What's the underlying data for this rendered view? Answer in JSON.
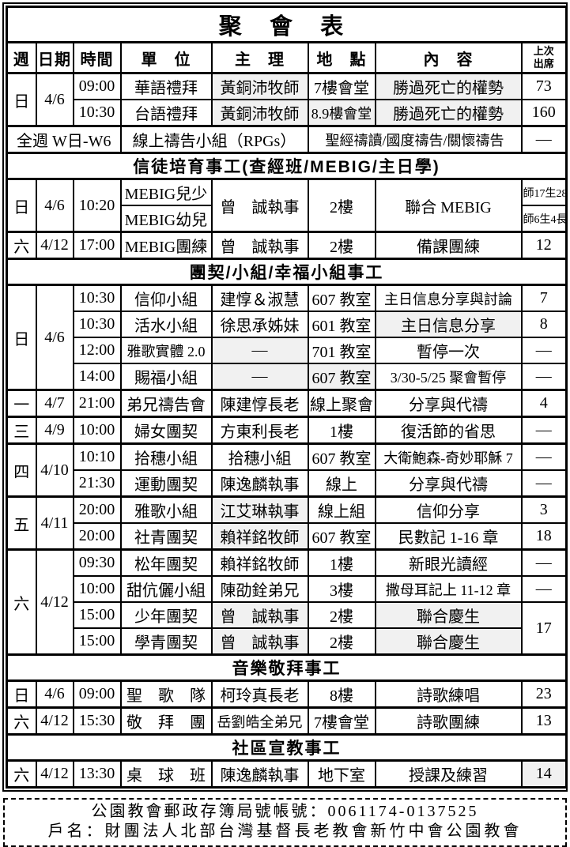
{
  "table": {
    "title": "聚 會 表",
    "columns": [
      {
        "label": "週"
      },
      {
        "label": "日期"
      },
      {
        "label": "時間"
      },
      {
        "label": "單　位"
      },
      {
        "label": "主　理"
      },
      {
        "label": "地　點"
      },
      {
        "label": "內　容"
      },
      {
        "label": "上次\n出席",
        "small": true
      }
    ],
    "blocks": [
      {
        "type": "rows",
        "rows": [
          {
            "cells": [
              {
                "t": "日",
                "rs": 2
              },
              {
                "t": "4/6",
                "rs": 2
              },
              {
                "t": "09:00"
              },
              {
                "t": "華語禮拜"
              },
              {
                "t": "黃銅沛牧師",
                "sh": true
              },
              {
                "t": "7樓會堂"
              },
              {
                "t": "勝過死亡的權勢",
                "sh": true
              },
              {
                "t": "73"
              }
            ]
          },
          {
            "cells": [
              {
                "t": "10:30"
              },
              {
                "t": "台語禮拜"
              },
              {
                "t": "黃銅沛牧師",
                "sh": true
              },
              {
                "t": "8.9樓會堂",
                "f": 18,
                "sh": true
              },
              {
                "t": "勝過死亡的權勢",
                "sh": true
              },
              {
                "t": "160"
              }
            ]
          },
          {
            "g": true,
            "cells": [
              {
                "t": "全週 W日-W6",
                "cs": 3
              },
              {
                "t": "線上禱告小組（RPGs）",
                "cs": 2
              },
              {
                "t": "聖經禱讀/國度禱告/關懷禱告",
                "cs": 2,
                "f": 18
              },
              {
                "t": "—"
              }
            ]
          }
        ]
      },
      {
        "type": "section",
        "label": "信徒培育事工(查經班/MEBIG/主日學)"
      },
      {
        "type": "rows",
        "rows": [
          {
            "cells": [
              {
                "t": "日",
                "rs": 2
              },
              {
                "t": "4/6",
                "rs": 2
              },
              {
                "t": "10:20",
                "rs": 2
              },
              {
                "t": "MEBIG兒少"
              },
              {
                "t": "曾　誠執事",
                "rs": 2
              },
              {
                "t": "2樓",
                "rs": 2
              },
              {
                "t": "聯合 MEBIG",
                "rs": 2
              },
              {
                "t": "師17生28長2",
                "sm": true
              }
            ]
          },
          {
            "cells": [
              {
                "t": "MEBIG幼兒"
              },
              {
                "t": "師6生4長2",
                "sm": true
              }
            ]
          },
          {
            "g": true,
            "cells": [
              {
                "t": "六"
              },
              {
                "t": "4/12"
              },
              {
                "t": "17:00"
              },
              {
                "t": "MEBIG團練"
              },
              {
                "t": "曾　誠執事"
              },
              {
                "t": "2樓"
              },
              {
                "t": "備課團練"
              },
              {
                "t": "12"
              }
            ]
          }
        ]
      },
      {
        "type": "section",
        "label": "團契/小組/幸福小組事工"
      },
      {
        "type": "rows",
        "rows": [
          {
            "cells": [
              {
                "t": "日",
                "rs": 4
              },
              {
                "t": "4/6",
                "rs": 4
              },
              {
                "t": "10:30"
              },
              {
                "t": "信仰小組"
              },
              {
                "t": "建惇＆淑慧"
              },
              {
                "t": "607 教室"
              },
              {
                "t": "主日信息分享與討論",
                "f": 18
              },
              {
                "t": "7"
              }
            ]
          },
          {
            "cells": [
              {
                "t": "10:30"
              },
              {
                "t": "活水小組"
              },
              {
                "t": "徐思承姊妹"
              },
              {
                "t": "601 教室"
              },
              {
                "t": "主日信息分享",
                "sh": true
              },
              {
                "t": "8"
              }
            ]
          },
          {
            "cells": [
              {
                "t": "12:00"
              },
              {
                "t": "雅歌實體 2.0",
                "f": 18
              },
              {
                "t": "—",
                "sh": true
              },
              {
                "t": "701 教室"
              },
              {
                "t": "暫停一次"
              },
              {
                "t": "—"
              }
            ]
          },
          {
            "cells": [
              {
                "t": "14:00"
              },
              {
                "t": "賜福小組"
              },
              {
                "t": "—",
                "sh": true
              },
              {
                "t": "607 教室",
                "sh": true
              },
              {
                "t": "3/30-5/25 聚會暫停",
                "f": 18
              },
              {
                "t": "—"
              }
            ]
          },
          {
            "g": true,
            "cells": [
              {
                "t": "一"
              },
              {
                "t": "4/7"
              },
              {
                "t": "21:00"
              },
              {
                "t": "弟兄禱告會"
              },
              {
                "t": "陳建惇長老"
              },
              {
                "t": "線上聚會"
              },
              {
                "t": "分享與代禱"
              },
              {
                "t": "4"
              }
            ]
          },
          {
            "g": true,
            "cells": [
              {
                "t": "三"
              },
              {
                "t": "4/9"
              },
              {
                "t": "10:00"
              },
              {
                "t": "婦女團契"
              },
              {
                "t": "方東利長老"
              },
              {
                "t": "1樓"
              },
              {
                "t": "復活節的省思"
              },
              {
                "t": "—"
              }
            ]
          },
          {
            "g": true,
            "cells": [
              {
                "t": "四",
                "rs": 2
              },
              {
                "t": "4/10",
                "rs": 2
              },
              {
                "t": "10:10"
              },
              {
                "t": "拾穗小組"
              },
              {
                "t": "拾穗小組"
              },
              {
                "t": "607 教室"
              },
              {
                "t": "大衛鮑森-奇妙耶穌 7",
                "f": 18
              },
              {
                "t": "—"
              }
            ]
          },
          {
            "cells": [
              {
                "t": "21:30"
              },
              {
                "t": "運動團契"
              },
              {
                "t": "陳逸麟執事"
              },
              {
                "t": "線上"
              },
              {
                "t": "分享與代禱"
              },
              {
                "t": "—"
              }
            ]
          },
          {
            "g": true,
            "cells": [
              {
                "t": "五",
                "rs": 2
              },
              {
                "t": "4/11",
                "rs": 2
              },
              {
                "t": "20:00"
              },
              {
                "t": "雅歌小組"
              },
              {
                "t": "江艾琳執事",
                "sh": true
              },
              {
                "t": "線上組"
              },
              {
                "t": "信仰分享"
              },
              {
                "t": "3"
              }
            ]
          },
          {
            "cells": [
              {
                "t": "20:00"
              },
              {
                "t": "社青團契"
              },
              {
                "t": "賴祥銘牧師",
                "sh": true
              },
              {
                "t": "607 教室"
              },
              {
                "t": "民數記 1-16 章"
              },
              {
                "t": "18"
              }
            ]
          },
          {
            "g": true,
            "cells": [
              {
                "t": "六",
                "rs": 4
              },
              {
                "t": "4/12",
                "rs": 4
              },
              {
                "t": "09:30"
              },
              {
                "t": "松年團契"
              },
              {
                "t": "賴祥銘牧師"
              },
              {
                "t": "1樓"
              },
              {
                "t": "新眼光讀經"
              },
              {
                "t": "—"
              }
            ]
          },
          {
            "cells": [
              {
                "t": "10:00"
              },
              {
                "t": "甜伉儷小組"
              },
              {
                "t": "陳劭銓弟兄"
              },
              {
                "t": "3樓"
              },
              {
                "t": "撒母耳記上 11-12 章",
                "f": 18
              },
              {
                "t": "—"
              }
            ]
          },
          {
            "cells": [
              {
                "t": "15:00"
              },
              {
                "t": "少年團契"
              },
              {
                "t": "曾　誠執事",
                "sh": true
              },
              {
                "t": "2樓"
              },
              {
                "t": "聯合慶生",
                "sh": true
              },
              {
                "t": "17",
                "rs": 2
              }
            ]
          },
          {
            "cells": [
              {
                "t": "15:00"
              },
              {
                "t": "學青團契"
              },
              {
                "t": "曾　誠執事",
                "sh": true
              },
              {
                "t": "2樓"
              },
              {
                "t": "聯合慶生",
                "sh": true
              }
            ]
          }
        ]
      },
      {
        "type": "section",
        "label": "音樂敬拜事工"
      },
      {
        "type": "rows",
        "rows": [
          {
            "cells": [
              {
                "t": "日"
              },
              {
                "t": "4/6"
              },
              {
                "t": "09:00"
              },
              {
                "t": "聖　歌　隊"
              },
              {
                "t": "柯玲真長老"
              },
              {
                "t": "8樓"
              },
              {
                "t": "詩歌練唱"
              },
              {
                "t": "23"
              }
            ]
          },
          {
            "g": true,
            "cells": [
              {
                "t": "六"
              },
              {
                "t": "4/12"
              },
              {
                "t": "15:30"
              },
              {
                "t": "敬　拜　團"
              },
              {
                "t": "岳劉皓全弟兄",
                "f": 18
              },
              {
                "t": "7樓會堂"
              },
              {
                "t": "詩歌團練"
              },
              {
                "t": "13"
              }
            ]
          }
        ]
      },
      {
        "type": "section",
        "label": "社區宣教事工"
      },
      {
        "type": "rows",
        "rows": [
          {
            "cells": [
              {
                "t": "六"
              },
              {
                "t": "4/12"
              },
              {
                "t": "13:30"
              },
              {
                "t": "桌　球　班"
              },
              {
                "t": "陳逸麟執事"
              },
              {
                "t": "地下室"
              },
              {
                "t": "授課及練習"
              },
              {
                "t": "14",
                "sh": true
              }
            ]
          }
        ]
      }
    ]
  },
  "footer": {
    "line1": "公園教會郵政存簿局號帳號：0061174-0137525",
    "line2": "戶名：財團法人北部台灣基督長老教會新竹中會公園教會"
  }
}
